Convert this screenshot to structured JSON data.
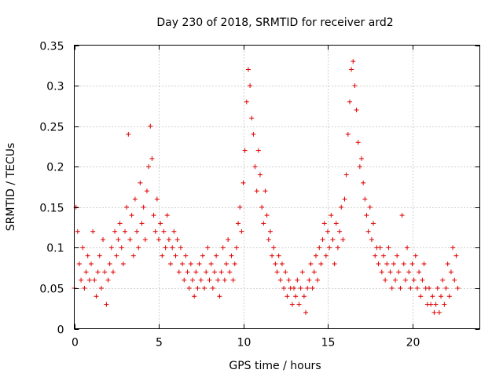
{
  "chart_data": {
    "type": "scatter",
    "title": "Day 230 of 2018, SRMTID for receiver ard2",
    "xlabel": "GPS time / hours",
    "ylabel": "SRMTID / TECUs",
    "xlim": [
      0,
      24
    ],
    "ylim": [
      0,
      0.35
    ],
    "xticks": [
      0,
      5,
      10,
      15,
      20
    ],
    "xtick_labels": [
      "0",
      "5",
      "10",
      "15",
      "20"
    ],
    "yticks": [
      0,
      0.05,
      0.1,
      0.15,
      0.2,
      0.25,
      0.3,
      0.35
    ],
    "ytick_labels": [
      "0",
      "0.05",
      "0.1",
      "0.15",
      "0.2",
      "0.25",
      "0.3",
      "0.35"
    ],
    "grid": true,
    "marker": "+",
    "marker_color": "#e00000",
    "series": [
      {
        "name": "SRMTID",
        "points": [
          [
            0.0,
            0.05
          ],
          [
            0.1,
            0.15
          ],
          [
            0.2,
            0.12
          ],
          [
            0.3,
            0.08
          ],
          [
            0.4,
            0.06
          ],
          [
            0.5,
            0.1
          ],
          [
            0.6,
            0.05
          ],
          [
            0.7,
            0.07
          ],
          [
            0.8,
            0.09
          ],
          [
            0.9,
            0.06
          ],
          [
            1.0,
            0.08
          ],
          [
            1.1,
            0.12
          ],
          [
            1.2,
            0.06
          ],
          [
            1.3,
            0.04
          ],
          [
            1.4,
            0.07
          ],
          [
            1.5,
            0.09
          ],
          [
            1.6,
            0.05
          ],
          [
            1.7,
            0.11
          ],
          [
            1.8,
            0.07
          ],
          [
            1.9,
            0.03
          ],
          [
            2.0,
            0.06
          ],
          [
            2.1,
            0.08
          ],
          [
            2.2,
            0.1
          ],
          [
            2.3,
            0.07
          ],
          [
            2.4,
            0.12
          ],
          [
            2.5,
            0.09
          ],
          [
            2.6,
            0.11
          ],
          [
            2.7,
            0.13
          ],
          [
            2.8,
            0.1
          ],
          [
            2.9,
            0.08
          ],
          [
            3.0,
            0.12
          ],
          [
            3.1,
            0.15
          ],
          [
            3.2,
            0.24
          ],
          [
            3.3,
            0.11
          ],
          [
            3.4,
            0.14
          ],
          [
            3.5,
            0.09
          ],
          [
            3.6,
            0.16
          ],
          [
            3.7,
            0.12
          ],
          [
            3.8,
            0.1
          ],
          [
            3.9,
            0.18
          ],
          [
            4.0,
            0.13
          ],
          [
            4.1,
            0.15
          ],
          [
            4.2,
            0.11
          ],
          [
            4.3,
            0.17
          ],
          [
            4.4,
            0.2
          ],
          [
            4.5,
            0.25
          ],
          [
            4.6,
            0.21
          ],
          [
            4.7,
            0.14
          ],
          [
            4.8,
            0.12
          ],
          [
            4.9,
            0.16
          ],
          [
            5.0,
            0.11
          ],
          [
            5.1,
            0.13
          ],
          [
            5.2,
            0.09
          ],
          [
            5.3,
            0.12
          ],
          [
            5.4,
            0.1
          ],
          [
            5.5,
            0.14
          ],
          [
            5.6,
            0.11
          ],
          [
            5.7,
            0.08
          ],
          [
            5.8,
            0.1
          ],
          [
            5.9,
            0.12
          ],
          [
            6.0,
            0.09
          ],
          [
            6.1,
            0.11
          ],
          [
            6.2,
            0.07
          ],
          [
            6.3,
            0.1
          ],
          [
            6.4,
            0.08
          ],
          [
            6.5,
            0.06
          ],
          [
            6.6,
            0.09
          ],
          [
            6.7,
            0.07
          ],
          [
            6.8,
            0.05
          ],
          [
            6.9,
            0.08
          ],
          [
            7.0,
            0.06
          ],
          [
            7.1,
            0.04
          ],
          [
            7.2,
            0.07
          ],
          [
            7.3,
            0.05
          ],
          [
            7.4,
            0.08
          ],
          [
            7.5,
            0.06
          ],
          [
            7.6,
            0.09
          ],
          [
            7.7,
            0.05
          ],
          [
            7.8,
            0.07
          ],
          [
            7.9,
            0.1
          ],
          [
            8.0,
            0.06
          ],
          [
            8.1,
            0.08
          ],
          [
            8.2,
            0.05
          ],
          [
            8.3,
            0.07
          ],
          [
            8.4,
            0.09
          ],
          [
            8.5,
            0.06
          ],
          [
            8.6,
            0.04
          ],
          [
            8.7,
            0.07
          ],
          [
            8.8,
            0.1
          ],
          [
            8.9,
            0.06
          ],
          [
            9.0,
            0.08
          ],
          [
            9.1,
            0.11
          ],
          [
            9.2,
            0.07
          ],
          [
            9.3,
            0.09
          ],
          [
            9.4,
            0.06
          ],
          [
            9.5,
            0.08
          ],
          [
            9.6,
            0.1
          ],
          [
            9.7,
            0.13
          ],
          [
            9.8,
            0.15
          ],
          [
            9.9,
            0.12
          ],
          [
            10.0,
            0.18
          ],
          [
            10.1,
            0.22
          ],
          [
            10.2,
            0.28
          ],
          [
            10.3,
            0.32
          ],
          [
            10.4,
            0.3
          ],
          [
            10.5,
            0.26
          ],
          [
            10.6,
            0.24
          ],
          [
            10.7,
            0.2
          ],
          [
            10.8,
            0.17
          ],
          [
            10.9,
            0.22
          ],
          [
            11.0,
            0.19
          ],
          [
            11.1,
            0.15
          ],
          [
            11.2,
            0.13
          ],
          [
            11.3,
            0.17
          ],
          [
            11.4,
            0.14
          ],
          [
            11.5,
            0.11
          ],
          [
            11.6,
            0.12
          ],
          [
            11.7,
            0.09
          ],
          [
            11.8,
            0.1
          ],
          [
            11.9,
            0.08
          ],
          [
            12.0,
            0.07
          ],
          [
            12.1,
            0.09
          ],
          [
            12.2,
            0.06
          ],
          [
            12.3,
            0.08
          ],
          [
            12.4,
            0.05
          ],
          [
            12.5,
            0.07
          ],
          [
            12.6,
            0.04
          ],
          [
            12.7,
            0.06
          ],
          [
            12.8,
            0.05
          ],
          [
            12.9,
            0.03
          ],
          [
            13.0,
            0.05
          ],
          [
            13.1,
            0.04
          ],
          [
            13.2,
            0.06
          ],
          [
            13.3,
            0.03
          ],
          [
            13.4,
            0.05
          ],
          [
            13.5,
            0.07
          ],
          [
            13.6,
            0.04
          ],
          [
            13.7,
            0.02
          ],
          [
            13.8,
            0.05
          ],
          [
            13.9,
            0.06
          ],
          [
            14.0,
            0.08
          ],
          [
            14.1,
            0.05
          ],
          [
            14.2,
            0.07
          ],
          [
            14.3,
            0.09
          ],
          [
            14.4,
            0.06
          ],
          [
            14.5,
            0.1
          ],
          [
            14.6,
            0.08
          ],
          [
            14.7,
            0.11
          ],
          [
            14.8,
            0.13
          ],
          [
            14.9,
            0.09
          ],
          [
            15.0,
            0.12
          ],
          [
            15.1,
            0.1
          ],
          [
            15.2,
            0.14
          ],
          [
            15.3,
            0.11
          ],
          [
            15.4,
            0.08
          ],
          [
            15.5,
            0.13
          ],
          [
            15.6,
            0.1
          ],
          [
            15.7,
            0.12
          ],
          [
            15.8,
            0.15
          ],
          [
            15.9,
            0.11
          ],
          [
            16.0,
            0.16
          ],
          [
            16.1,
            0.19
          ],
          [
            16.2,
            0.24
          ],
          [
            16.3,
            0.28
          ],
          [
            16.4,
            0.32
          ],
          [
            16.5,
            0.33
          ],
          [
            16.6,
            0.3
          ],
          [
            16.7,
            0.27
          ],
          [
            16.8,
            0.23
          ],
          [
            16.9,
            0.2
          ],
          [
            17.0,
            0.21
          ],
          [
            17.1,
            0.18
          ],
          [
            17.2,
            0.16
          ],
          [
            17.3,
            0.14
          ],
          [
            17.4,
            0.12
          ],
          [
            17.5,
            0.15
          ],
          [
            17.6,
            0.11
          ],
          [
            17.7,
            0.13
          ],
          [
            17.8,
            0.09
          ],
          [
            17.9,
            0.1
          ],
          [
            18.0,
            0.08
          ],
          [
            18.1,
            0.1
          ],
          [
            18.2,
            0.07
          ],
          [
            18.3,
            0.09
          ],
          [
            18.4,
            0.06
          ],
          [
            18.5,
            0.08
          ],
          [
            18.6,
            0.1
          ],
          [
            18.7,
            0.07
          ],
          [
            18.8,
            0.05
          ],
          [
            18.9,
            0.08
          ],
          [
            19.0,
            0.06
          ],
          [
            19.1,
            0.09
          ],
          [
            19.2,
            0.07
          ],
          [
            19.3,
            0.05
          ],
          [
            19.4,
            0.14
          ],
          [
            19.5,
            0.08
          ],
          [
            19.6,
            0.06
          ],
          [
            19.7,
            0.1
          ],
          [
            19.8,
            0.07
          ],
          [
            19.9,
            0.05
          ],
          [
            20.0,
            0.08
          ],
          [
            20.1,
            0.06
          ],
          [
            20.2,
            0.09
          ],
          [
            20.3,
            0.05
          ],
          [
            20.4,
            0.07
          ],
          [
            20.5,
            0.04
          ],
          [
            20.6,
            0.06
          ],
          [
            20.7,
            0.08
          ],
          [
            20.8,
            0.05
          ],
          [
            20.9,
            0.03
          ],
          [
            21.0,
            0.05
          ],
          [
            21.1,
            0.03
          ],
          [
            21.2,
            0.04
          ],
          [
            21.3,
            0.02
          ],
          [
            21.4,
            0.03
          ],
          [
            21.5,
            0.05
          ],
          [
            21.6,
            0.02
          ],
          [
            21.7,
            0.04
          ],
          [
            21.8,
            0.06
          ],
          [
            21.9,
            0.03
          ],
          [
            22.0,
            0.05
          ],
          [
            22.1,
            0.08
          ],
          [
            22.2,
            0.04
          ],
          [
            22.3,
            0.07
          ],
          [
            22.4,
            0.1
          ],
          [
            22.5,
            0.06
          ],
          [
            22.6,
            0.09
          ],
          [
            22.7,
            0.05
          ]
        ]
      }
    ]
  }
}
